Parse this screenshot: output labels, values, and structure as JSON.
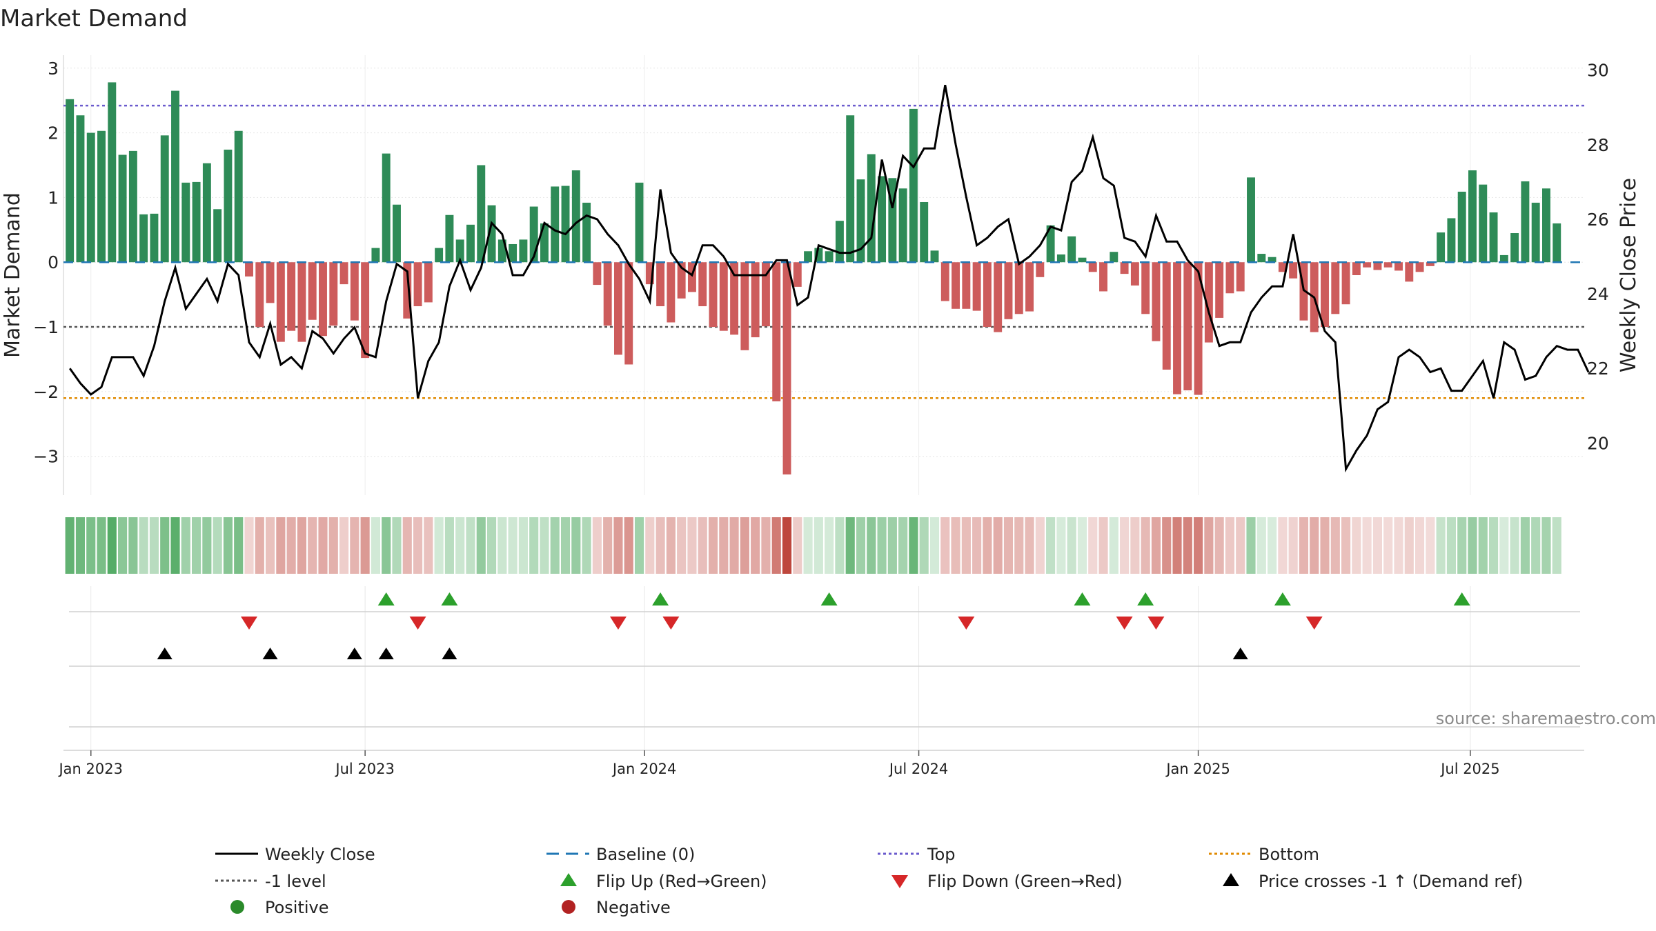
{
  "chart_data": {
    "type": "bar",
    "title": "Market Demand",
    "ylabel": "Market Demand",
    "y2label": "Weekly Close Price",
    "ylim": [
      -3.6,
      3.2
    ],
    "y2lim": [
      18.6,
      30.4
    ],
    "yticks": [
      {
        "value": 3,
        "label": "3"
      },
      {
        "value": 2,
        "label": "2"
      },
      {
        "value": 1,
        "label": "1"
      },
      {
        "value": 0,
        "label": "0"
      },
      {
        "value": -1,
        "label": "−1"
      },
      {
        "value": -2,
        "label": "−2"
      },
      {
        "value": -3,
        "label": "−3"
      }
    ],
    "y2ticks": [
      {
        "value": 30,
        "label": "30"
      },
      {
        "value": 28,
        "label": "28"
      },
      {
        "value": 26,
        "label": "26"
      },
      {
        "value": 24,
        "label": "24"
      },
      {
        "value": 22,
        "label": "22"
      },
      {
        "value": 20,
        "label": "20"
      }
    ],
    "xticks": [
      {
        "week": 2,
        "label": "Jan 2023"
      },
      {
        "week": 28,
        "label": "Jul 2023"
      },
      {
        "week": 54.5,
        "label": "Jan 2024"
      },
      {
        "week": 80.5,
        "label": "Jul 2024"
      },
      {
        "week": 107,
        "label": "Jan 2025"
      },
      {
        "week": 132.8,
        "label": "Jul 2025"
      }
    ],
    "x_week_range": [
      -0.6,
      143.6
    ],
    "levels": {
      "top": 2.42,
      "bottom": -2.1,
      "minus_one": -1,
      "baseline": 0
    },
    "demand": [
      2.52,
      2.27,
      2.0,
      2.03,
      2.78,
      1.66,
      1.72,
      0.74,
      0.75,
      1.96,
      2.65,
      1.23,
      1.24,
      1.53,
      0.82,
      1.74,
      2.03,
      -0.22,
      -1.0,
      -0.63,
      -1.23,
      -1.06,
      -1.23,
      -0.89,
      -1.14,
      -0.98,
      -0.34,
      -0.9,
      -1.48,
      0.22,
      1.68,
      0.89,
      -0.87,
      -0.68,
      -0.62,
      0.22,
      0.73,
      0.35,
      0.58,
      1.5,
      0.88,
      0.35,
      0.28,
      0.35,
      0.86,
      0.6,
      1.17,
      1.18,
      1.42,
      0.92,
      -0.35,
      -0.98,
      -1.43,
      -1.58,
      1.23,
      -0.34,
      -0.68,
      -0.93,
      -0.56,
      -0.46,
      -0.68,
      -1.0,
      -1.06,
      -1.12,
      -1.36,
      -1.16,
      -0.99,
      -2.15,
      -3.28,
      -0.38,
      0.17,
      0.22,
      0.17,
      0.64,
      2.27,
      1.28,
      1.67,
      1.33,
      1.3,
      1.14,
      2.37,
      0.93,
      0.18,
      -0.6,
      -0.72,
      -0.72,
      -0.75,
      -1.0,
      -1.08,
      -0.88,
      -0.8,
      -0.76,
      -0.23,
      0.57,
      0.12,
      0.4,
      0.07,
      -0.15,
      -0.45,
      0.16,
      -0.18,
      -0.36,
      -0.8,
      -1.22,
      -1.66,
      -2.04,
      -1.98,
      -2.05,
      -1.24,
      -0.86,
      -0.48,
      -0.45,
      1.31,
      0.13,
      0.08,
      -0.15,
      -0.25,
      -0.9,
      -1.08,
      -1.0,
      -0.8,
      -0.65,
      -0.2,
      -0.08,
      -0.12,
      -0.08,
      -0.13,
      -0.3,
      -0.15,
      -0.06,
      0.46,
      0.68,
      1.09,
      1.42,
      1.2,
      0.77,
      0.11,
      0.45,
      1.25,
      0.92,
      1.14,
      0.6
    ],
    "weekly_close": [
      22.0,
      21.6,
      21.3,
      21.5,
      22.3,
      22.3,
      22.3,
      21.8,
      22.6,
      23.8,
      24.7,
      23.6,
      24.0,
      24.4,
      23.8,
      24.8,
      24.5,
      22.7,
      22.3,
      23.2,
      22.1,
      22.3,
      22.0,
      23.0,
      22.8,
      22.4,
      22.8,
      23.1,
      22.4,
      22.3,
      23.8,
      24.8,
      24.6,
      21.2,
      22.2,
      22.7,
      24.2,
      24.9,
      24.1,
      24.7,
      25.9,
      25.6,
      24.5,
      24.5,
      25.0,
      25.9,
      25.7,
      25.6,
      25.9,
      26.1,
      26.0,
      25.6,
      25.3,
      24.8,
      24.4,
      23.8,
      26.8,
      25.1,
      24.7,
      24.5,
      25.3,
      25.3,
      25.0,
      24.5,
      24.5,
      24.5,
      24.5,
      24.9,
      24.9,
      23.7,
      23.9,
      25.3,
      25.2,
      25.1,
      25.1,
      25.2,
      25.5,
      27.6,
      26.3,
      27.7,
      27.4,
      27.9,
      27.9,
      29.6,
      28.0,
      26.6,
      25.3,
      25.5,
      25.8,
      26.0,
      24.8,
      25.0,
      25.3,
      25.8,
      25.7,
      27.0,
      27.3,
      28.2,
      27.1,
      26.9,
      25.5,
      25.4,
      25.0,
      26.1,
      25.4,
      25.4,
      24.9,
      24.6,
      23.5,
      22.6,
      22.7,
      22.7,
      23.5,
      23.9,
      24.2,
      24.2,
      25.6,
      24.1,
      23.9,
      23.0,
      22.7,
      19.3,
      19.8,
      20.2,
      20.9,
      21.1,
      22.3,
      22.5,
      22.3,
      21.9,
      22.0,
      21.4,
      21.4,
      21.8,
      22.2,
      21.2,
      22.7,
      22.5,
      21.7,
      21.8,
      22.3,
      22.6,
      22.5,
      22.5,
      21.9
    ],
    "flip_up_weeks": [
      30,
      36,
      56,
      72,
      96,
      102,
      115,
      132
    ],
    "flip_down_weeks": [
      17,
      33,
      52,
      57,
      85,
      100,
      103,
      118
    ],
    "price_cross_weeks": [
      9,
      19,
      27,
      30,
      36,
      111
    ],
    "legend": [
      {
        "label": "Weekly Close",
        "kind": "line-solid",
        "color": "#000000"
      },
      {
        "label": "Baseline (0)",
        "kind": "line-dash",
        "color": "#1f77b4"
      },
      {
        "label": "Top",
        "kind": "line-dot",
        "color": "#6a5acd"
      },
      {
        "label": "Bottom",
        "kind": "line-dot",
        "color": "#e08a00"
      },
      {
        "label": "-1 level",
        "kind": "line-dot",
        "color": "#555555"
      },
      {
        "label": "Flip Up (Red→Green)",
        "kind": "triangle-up",
        "color": "#2ca02c"
      },
      {
        "label": "Flip Down (Green→Red)",
        "kind": "triangle-down",
        "color": "#d62728"
      },
      {
        "label": "Price crosses -1 ↑ (Demand ref)",
        "kind": "triangle-up",
        "color": "#000000"
      },
      {
        "label": "Positive",
        "kind": "circle",
        "color": "#2a8a2a"
      },
      {
        "label": "Negative",
        "kind": "circle",
        "color": "#b22222"
      }
    ],
    "colors": {
      "positive_bar": "#2e8b57",
      "negative_bar": "#cd5c5c",
      "price_line": "#000000",
      "grid": "#e6e6e6"
    }
  },
  "source": "source: sharemaestro.com"
}
